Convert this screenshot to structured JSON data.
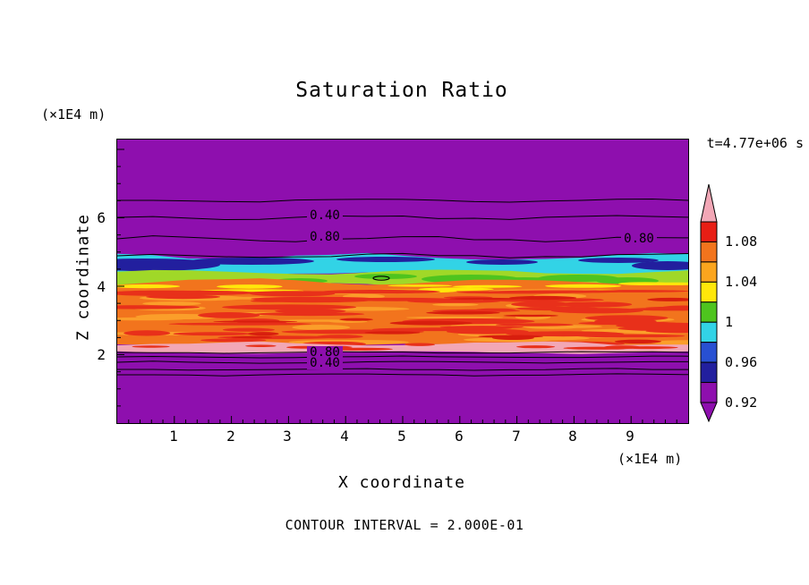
{
  "title": "Saturation Ratio",
  "timestamp": "t=4.77e+06 s",
  "contour_note": "CONTOUR INTERVAL = 2.000E-01",
  "axes": {
    "x_label": "X coordinate",
    "x_unit": "(×1E4 m)",
    "y_label": "Z coordinate",
    "y_unit": "(×1E4 m)",
    "x_ticks": [
      "1",
      "2",
      "3",
      "4",
      "5",
      "6",
      "7",
      "8",
      "9"
    ],
    "y_ticks": [
      "6",
      "4",
      "2"
    ]
  },
  "contour_labels": [
    {
      "text": "0.40"
    },
    {
      "text": "0.80"
    },
    {
      "text": "0.80"
    },
    {
      "text": "0.80"
    },
    {
      "text": "0.40"
    }
  ],
  "colorbar": {
    "labels": [
      "1.08",
      "1.04",
      "1",
      "0.96",
      "0.92"
    ],
    "segments": [
      "#e81e15",
      "#f2741d",
      "#fba51e",
      "#ffe70a",
      "#4ec41e",
      "#32d3e6",
      "#2850d2",
      "#221f9e",
      "#8e0fae"
    ],
    "triangle_top": "#f2a7b6",
    "triangle_bottom": "#8e0fae"
  },
  "palette": {
    "purple": "#8e0fae",
    "navy": "#221f9e",
    "blue": "#2850d2",
    "cyan": "#32d3e6",
    "green": "#4ec41e",
    "yellowgreen": "#a0d828",
    "yellow": "#ffe70a",
    "amber": "#fba51e",
    "orange": "#f2741d",
    "light_orange": "#fb9e2a",
    "red": "#e8301a",
    "deep_red": "#d81e0e",
    "pink": "#f2a7b6"
  },
  "chart_data": {
    "type": "heatmap",
    "subtype": "filled_contour_section",
    "title": "Saturation Ratio",
    "time_annotation": "t=4.77e+06 s",
    "contour_interval": 0.2,
    "x_axis": {
      "label": "X coordinate",
      "unit": "(×1E4 m)",
      "range": [
        0,
        10
      ],
      "ticks": [
        1,
        2,
        3,
        4,
        5,
        6,
        7,
        8,
        9
      ]
    },
    "z_axis": {
      "label": "Z coordinate",
      "unit": "(×1E4 m)",
      "range": [
        0,
        8.3
      ],
      "ticks": [
        2,
        4,
        6
      ]
    },
    "colorbar_levels": [
      0.92,
      0.96,
      1.0,
      1.04,
      1.08
    ],
    "line_contour_values": [
      0.4,
      0.8
    ],
    "layers_top_to_bottom": [
      {
        "z_range": [
          4.75,
          8.3
        ],
        "value": "low saturation background (purple), line contours 0.40 and 0.80 crossing near z≈5.4–6.1"
      },
      {
        "z_range": [
          4.35,
          4.75
        ],
        "value": "≈0.92–0.96 band (cyan) with darker ≈0.88–0.92 (navy) streaks"
      },
      {
        "z_range": [
          4.0,
          4.35
        ],
        "value": "≈0.96–1.02 band (yellow-green / green patches)"
      },
      {
        "z_range": [
          2.15,
          4.0
        ],
        "value": "≈1.04–1.10 band (orange with red / light-orange / yellow streaks)"
      },
      {
        "z_range": [
          1.95,
          2.15
        ],
        "value": "thin pink band with red mottling"
      },
      {
        "z_range": [
          0,
          1.95
        ],
        "value": "low saturation background (purple), line contours 0.80 and 0.40 stacked near z≈1.5–1.9"
      }
    ]
  }
}
